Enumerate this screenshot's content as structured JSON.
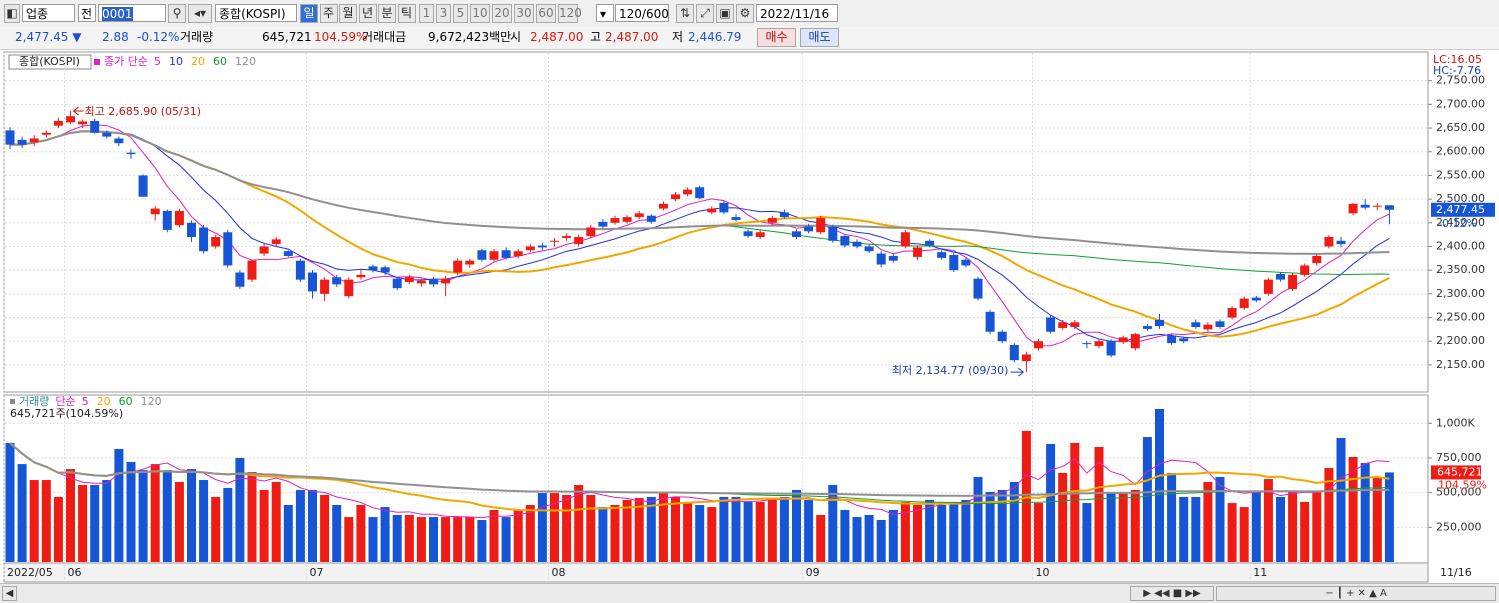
{
  "toolbar": {
    "market": "업종",
    "all": "전",
    "code": "0001",
    "name": "종합(KOSPI)",
    "periods": [
      "일",
      "주",
      "월",
      "년",
      "분",
      "틱"
    ],
    "intervals": [
      "1",
      "3",
      "5",
      "10",
      "20",
      "30",
      "60",
      "120"
    ],
    "count": "120/600",
    "date": "2022/11/16"
  },
  "quote": {
    "price": "2,477.45 ▼",
    "change": "2.88",
    "change_pct": "-0.12%",
    "volume_label": "거래량",
    "volume": "645,721",
    "volume_ratio": "104.59%",
    "amount_label": "거래대금",
    "amount": "9,672,423백만",
    "open_label": "시",
    "open": "2,487.00",
    "high_label": "고",
    "high": "2,487.00",
    "low_label": "저",
    "low": "2,446.79",
    "buy": "매수",
    "sell": "매도"
  },
  "price_chart": {
    "type": "candlestick",
    "name": "종합(KOSPI)",
    "ma_label": "종가 단순",
    "ma_periods": [
      5,
      10,
      20,
      60,
      120
    ],
    "ma_colors": [
      "#e020c0",
      "#2030e0",
      "#f0a800",
      "#10a030",
      "#909090"
    ],
    "up_color": "#ee1c14",
    "down_color": "#1555d6",
    "lc": "LC:16.05",
    "hc": "HC:-7.76",
    "last_label": "2,477.45",
    "last_pct": "-0.12%",
    "high_note": "최고 2,685.90 (05/31)",
    "low_note": "최저 2,134.77 (09/30)",
    "ylim": [
      2097,
      2800
    ],
    "yticks": [
      {
        "value": 2150,
        "label": "2,150.00"
      },
      {
        "value": 2200,
        "label": "2,200.00"
      },
      {
        "value": 2250,
        "label": "2,250.00"
      },
      {
        "value": 2300,
        "label": "2,300.00"
      },
      {
        "value": 2350,
        "label": "2,350.00"
      },
      {
        "value": 2400,
        "label": "2,400.00"
      },
      {
        "value": 2450,
        "label": "2,450.00"
      },
      {
        "value": 2500,
        "label": "2,500.00"
      },
      {
        "value": 2550,
        "label": "2,550.00"
      },
      {
        "value": 2600,
        "label": "2,600.00"
      },
      {
        "value": 2650,
        "label": "2,650.00"
      },
      {
        "value": 2700,
        "label": "2,700.00"
      },
      {
        "value": 2750,
        "label": "2,750.00"
      }
    ],
    "grid": true,
    "candles": [
      [
        2645,
        2652,
        2605,
        2615
      ],
      [
        2625,
        2632,
        2608,
        2615
      ],
      [
        2620,
        2635,
        2612,
        2628
      ],
      [
        2636,
        2645,
        2630,
        2640
      ],
      [
        2655,
        2672,
        2650,
        2665
      ],
      [
        2662,
        2685.9,
        2658,
        2675
      ],
      [
        2658,
        2668,
        2650,
        2664
      ],
      [
        2665,
        2670,
        2638,
        2640
      ],
      [
        2640,
        2645,
        2628,
        2632
      ],
      [
        2628,
        2632,
        2612,
        2618
      ],
      [
        2598,
        2605,
        2585,
        2595
      ],
      [
        2550,
        2552,
        2505,
        2505
      ],
      [
        2468,
        2485,
        2455,
        2480
      ],
      [
        2475,
        2478,
        2430,
        2435
      ],
      [
        2445,
        2480,
        2440,
        2475
      ],
      [
        2450,
        2455,
        2410,
        2420
      ],
      [
        2440,
        2445,
        2385,
        2390
      ],
      [
        2400,
        2425,
        2395,
        2420
      ],
      [
        2430,
        2435,
        2355,
        2360
      ],
      [
        2345,
        2350,
        2310,
        2315
      ],
      [
        2330,
        2372,
        2325,
        2370
      ],
      [
        2385,
        2405,
        2380,
        2400
      ],
      [
        2405,
        2420,
        2400,
        2415
      ],
      [
        2390,
        2392,
        2378,
        2380
      ],
      [
        2370,
        2374,
        2325,
        2330
      ],
      [
        2345,
        2350,
        2290,
        2305
      ],
      [
        2300,
        2335,
        2285,
        2330
      ],
      [
        2335,
        2340,
        2315,
        2320
      ],
      [
        2295,
        2335,
        2290,
        2330
      ],
      [
        2335,
        2350,
        2330,
        2340
      ],
      [
        2358,
        2362,
        2345,
        2350
      ],
      [
        2356,
        2360,
        2340,
        2345
      ],
      [
        2332,
        2335,
        2308,
        2312
      ],
      [
        2325,
        2340,
        2320,
        2335
      ],
      [
        2322,
        2332,
        2315,
        2328
      ],
      [
        2330,
        2335,
        2315,
        2320
      ],
      [
        2322,
        2338,
        2295,
        2332
      ],
      [
        2345,
        2375,
        2340,
        2370
      ],
      [
        2362,
        2374,
        2355,
        2370
      ],
      [
        2392,
        2395,
        2368,
        2372
      ],
      [
        2372,
        2395,
        2368,
        2390
      ],
      [
        2392,
        2398,
        2372,
        2376
      ],
      [
        2380,
        2395,
        2375,
        2390
      ],
      [
        2392,
        2405,
        2388,
        2400
      ],
      [
        2402,
        2408,
        2392,
        2398
      ],
      [
        2410,
        2418,
        2400,
        2412
      ],
      [
        2418,
        2428,
        2412,
        2422
      ],
      [
        2405,
        2425,
        2400,
        2420
      ],
      [
        2422,
        2445,
        2418,
        2440
      ],
      [
        2452,
        2458,
        2438,
        2442
      ],
      [
        2450,
        2465,
        2446,
        2460
      ],
      [
        2452,
        2466,
        2448,
        2462
      ],
      [
        2462,
        2475,
        2458,
        2470
      ],
      [
        2465,
        2468,
        2448,
        2452
      ],
      [
        2480,
        2495,
        2476,
        2490
      ],
      [
        2500,
        2515,
        2496,
        2510
      ],
      [
        2510,
        2525,
        2506,
        2520
      ],
      [
        2525,
        2528,
        2500,
        2502
      ],
      [
        2472,
        2485,
        2468,
        2480
      ],
      [
        2492,
        2496,
        2468,
        2472
      ],
      [
        2462,
        2468,
        2452,
        2456
      ],
      [
        2432,
        2436,
        2418,
        2422
      ],
      [
        2420,
        2435,
        2416,
        2430
      ],
      [
        2450,
        2465,
        2445,
        2460
      ],
      [
        2472,
        2478,
        2458,
        2462
      ],
      [
        2432,
        2436,
        2416,
        2420
      ],
      [
        2442,
        2448,
        2428,
        2432
      ],
      [
        2430,
        2465,
        2426,
        2460
      ],
      [
        2442,
        2446,
        2408,
        2412
      ],
      [
        2422,
        2426,
        2398,
        2402
      ],
      [
        2410,
        2415,
        2396,
        2400
      ],
      [
        2400,
        2404,
        2386,
        2390
      ],
      [
        2385,
        2390,
        2356,
        2362
      ],
      [
        2380,
        2384,
        2366,
        2370
      ],
      [
        2400,
        2435,
        2396,
        2430
      ],
      [
        2378,
        2402,
        2372,
        2398
      ],
      [
        2412,
        2415,
        2398,
        2402
      ],
      [
        2388,
        2392,
        2372,
        2376
      ],
      [
        2382,
        2386,
        2346,
        2350
      ],
      [
        2372,
        2376,
        2356,
        2360
      ],
      [
        2332,
        2336,
        2286,
        2290
      ],
      [
        2262,
        2266,
        2215,
        2220
      ],
      [
        2220,
        2224,
        2196,
        2200
      ],
      [
        2192,
        2196,
        2155,
        2160
      ],
      [
        2158,
        2178,
        2134.77,
        2172
      ],
      [
        2185,
        2205,
        2180,
        2200
      ],
      [
        2250,
        2254,
        2216,
        2220
      ],
      [
        2228,
        2245,
        2224,
        2240
      ],
      [
        2230,
        2245,
        2226,
        2240
      ],
      [
        2196,
        2200,
        2185,
        2194
      ],
      [
        2190,
        2205,
        2185,
        2200
      ],
      [
        2200,
        2204,
        2166,
        2170
      ],
      [
        2198,
        2212,
        2194,
        2208
      ],
      [
        2185,
        2218,
        2180,
        2215
      ],
      [
        2232,
        2236,
        2222,
        2226
      ],
      [
        2245,
        2258,
        2226,
        2232
      ],
      [
        2212,
        2216,
        2192,
        2196
      ],
      [
        2206,
        2210,
        2196,
        2200
      ],
      [
        2240,
        2246,
        2226,
        2230
      ],
      [
        2225,
        2240,
        2220,
        2235
      ],
      [
        2242,
        2246,
        2226,
        2230
      ],
      [
        2250,
        2274,
        2246,
        2270
      ],
      [
        2270,
        2294,
        2266,
        2290
      ],
      [
        2292,
        2296,
        2282,
        2286
      ],
      [
        2300,
        2334,
        2296,
        2330
      ],
      [
        2342,
        2346,
        2326,
        2330
      ],
      [
        2310,
        2344,
        2306,
        2340
      ],
      [
        2340,
        2364,
        2336,
        2360
      ],
      [
        2365,
        2384,
        2360,
        2380
      ],
      [
        2400,
        2424,
        2396,
        2420
      ],
      [
        2412,
        2420,
        2398,
        2405
      ],
      [
        2470,
        2492,
        2466,
        2490
      ],
      [
        2488,
        2500,
        2478,
        2482
      ],
      [
        2484,
        2492,
        2476,
        2486
      ],
      [
        2487,
        2487,
        2446.79,
        2477.45
      ]
    ]
  },
  "volume_chart": {
    "type": "bar",
    "name": "거래량",
    "ma_label": "단순",
    "ma_periods": [
      5,
      20,
      60,
      120
    ],
    "ma_colors": [
      "#e020c0",
      "#f0a800",
      "#10a030",
      "#909090"
    ],
    "info": "645,721주(104.59%)",
    "last_label": "645,721",
    "last_pct": "104.59%",
    "ylim": [
      0,
      1204000
    ],
    "yticks": [
      {
        "value": 250000,
        "label": "250,000"
      },
      {
        "value": 500000,
        "label": "500,000"
      },
      {
        "value": 750000,
        "label": "750,000"
      },
      {
        "value": 1000000,
        "label": "1,000K"
      }
    ],
    "values": [
      858000,
      706000,
      591000,
      591000,
      469000,
      670000,
      555000,
      555000,
      591000,
      815000,
      721000,
      663000,
      706000,
      663000,
      577000,
      670000,
      591000,
      469000,
      534000,
      750000,
      649000,
      519000,
      577000,
      411000,
      519000,
      519000,
      483000,
      411000,
      324000,
      411000,
      324000,
      396000,
      339000,
      339000,
      324000,
      324000,
      324000,
      324000,
      324000,
      303000,
      375000,
      324000,
      375000,
      411000,
      497000,
      497000,
      483000,
      555000,
      483000,
      396000,
      411000,
      447000,
      461000,
      469000,
      505000,
      469000,
      433000,
      411000,
      396000,
      469000,
      469000,
      433000,
      433000,
      447000,
      469000,
      519000,
      447000,
      339000,
      555000,
      375000,
      324000,
      339000,
      303000,
      375000,
      433000,
      411000,
      447000,
      411000,
      433000,
      447000,
      613000,
      505000,
      519000,
      577000,
      945000,
      425000,
      851000,
      642000,
      858000,
      425000,
      829000,
      505000,
      505000,
      519000,
      901000,
      1103000,
      642000,
      469000,
      469000,
      577000,
      613000,
      425000,
      396000,
      505000,
      598000,
      469000,
      505000,
      433000,
      505000,
      678000,
      894000,
      757000,
      714000,
      606000,
      645721
    ]
  },
  "x_axis": {
    "categories": [
      "2022/05",
      null,
      null,
      null,
      null,
      "06",
      null,
      null,
      null,
      null,
      null,
      null,
      null,
      null,
      null,
      null,
      null,
      null,
      null,
      null,
      null,
      null,
      null,
      null,
      null,
      "07",
      null,
      null,
      null,
      null,
      null,
      null,
      null,
      null,
      null,
      null,
      null,
      null,
      null,
      null,
      null,
      null,
      null,
      null,
      null,
      "08",
      null,
      null,
      null,
      null,
      null,
      null,
      null,
      null,
      null,
      null,
      null,
      null,
      null,
      null,
      null,
      null,
      null,
      null,
      null,
      null,
      "09",
      null,
      null,
      null,
      null,
      null,
      null,
      null,
      null,
      null,
      null,
      null,
      null,
      null,
      null,
      null,
      null,
      null,
      null,
      "10",
      null,
      null,
      null,
      null,
      null,
      null,
      null,
      null,
      null,
      null,
      null,
      null,
      null,
      null,
      null,
      null,
      null,
      "11",
      null,
      null,
      null,
      null,
      null,
      null,
      null,
      null,
      null,
      null,
      null
    ],
    "end_label": "11/16"
  }
}
